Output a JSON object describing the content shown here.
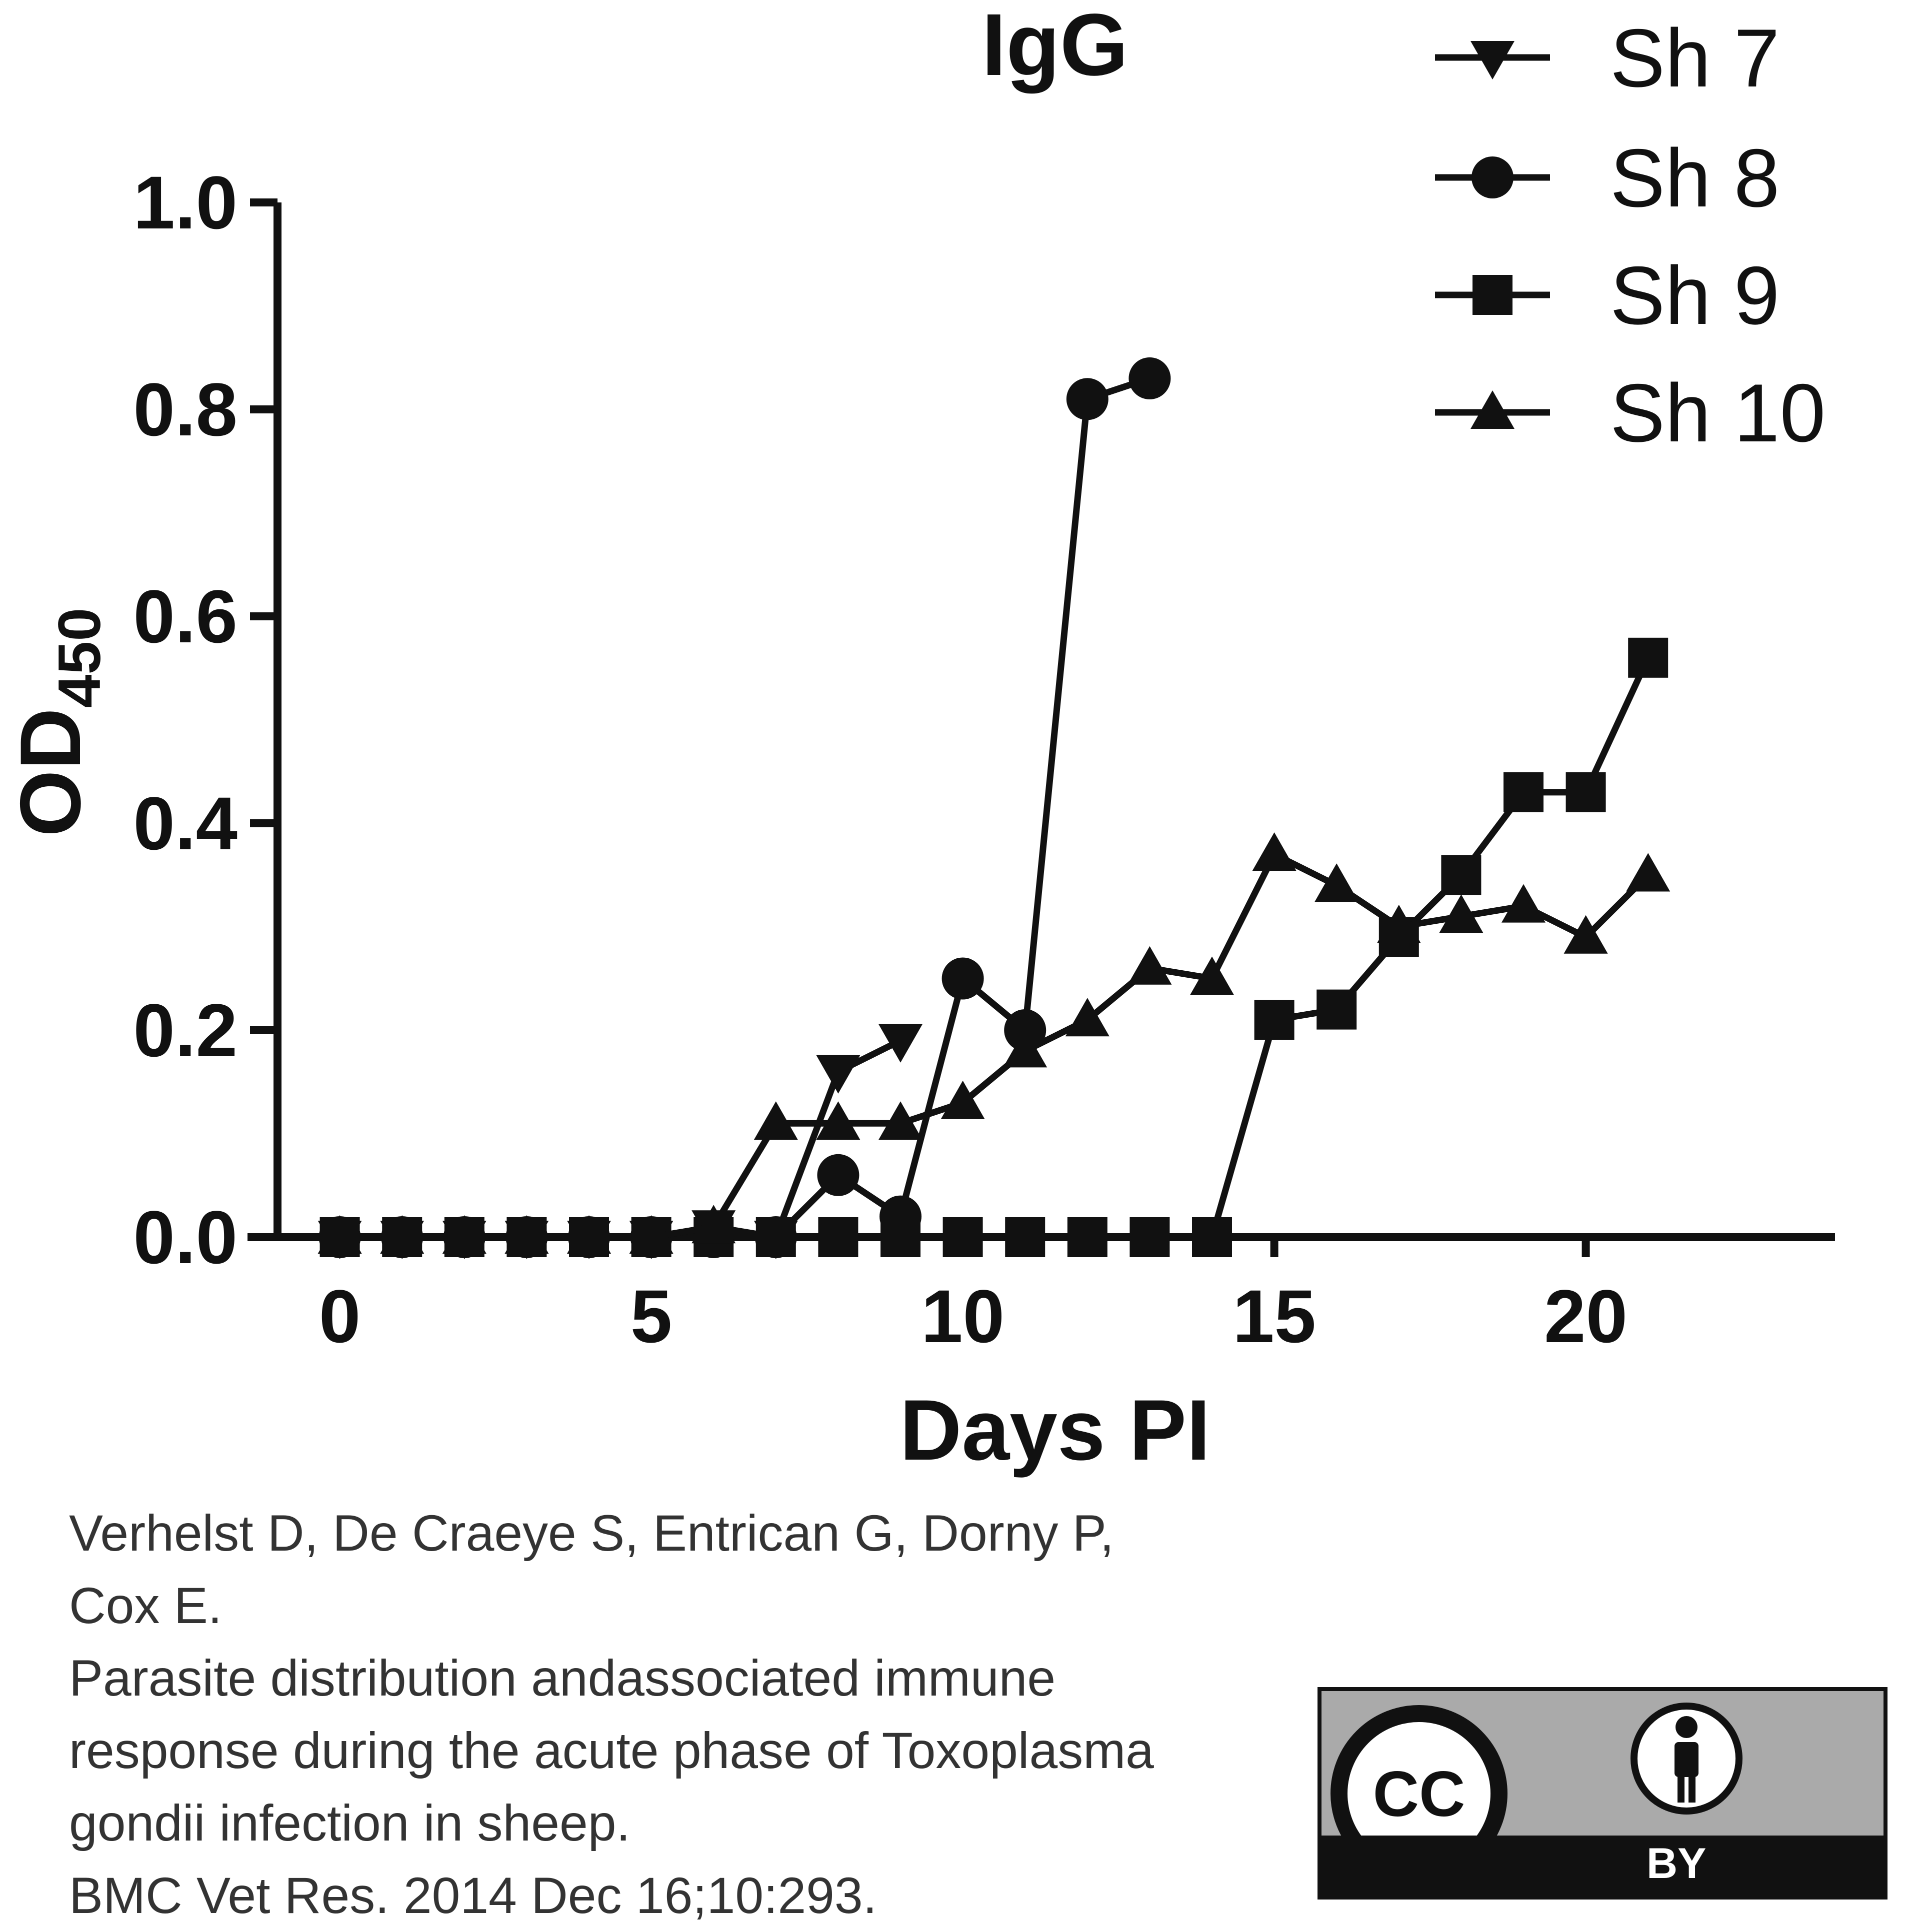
{
  "chart_data": {
    "type": "line",
    "title": "IgG",
    "xlabel": "Days PI",
    "ylabel_main": "OD",
    "ylabel_sub": "450",
    "xlim": [
      -1,
      24
    ],
    "ylim": [
      0,
      1.0
    ],
    "xticks": [
      0,
      5,
      10,
      15,
      20
    ],
    "xtick_labels": [
      "0",
      "5",
      "10",
      "15",
      "20"
    ],
    "yticks": [
      0.0,
      0.2,
      0.4,
      0.6,
      0.8,
      1.0
    ],
    "ytick_labels": [
      "0.0",
      "0.2",
      "0.4",
      "0.6",
      "0.8",
      "1.0"
    ],
    "legend_position": "top-right",
    "series": [
      {
        "name": "Sh 7",
        "marker": "triangle-down",
        "x": [
          0,
          1,
          2,
          3,
          4,
          5,
          6,
          7,
          8,
          9
        ],
        "y": [
          0,
          0,
          0,
          0,
          0,
          0,
          0.01,
          0.0,
          0.16,
          0.19
        ]
      },
      {
        "name": "Sh 8",
        "marker": "circle",
        "x": [
          0,
          1,
          2,
          3,
          4,
          5,
          6,
          7,
          8,
          9,
          10,
          11,
          12,
          13
        ],
        "y": [
          0,
          0,
          0,
          0,
          0,
          0,
          0,
          0,
          0.06,
          0.02,
          0.25,
          0.2,
          0.81,
          0.83
        ]
      },
      {
        "name": "Sh 9",
        "marker": "square",
        "x": [
          0,
          1,
          2,
          3,
          4,
          5,
          6,
          7,
          8,
          9,
          10,
          11,
          12,
          13,
          14,
          15,
          16,
          17,
          18,
          19,
          20,
          21
        ],
        "y": [
          0,
          0,
          0,
          0,
          0,
          0,
          0,
          0,
          0,
          0,
          0,
          0,
          0,
          0,
          0,
          0.21,
          0.22,
          0.29,
          0.35,
          0.43,
          0.43,
          0.56
        ]
      },
      {
        "name": "Sh 10",
        "marker": "triangle-up",
        "x": [
          0,
          1,
          2,
          3,
          4,
          5,
          6,
          7,
          8,
          9,
          10,
          11,
          12,
          13,
          14,
          15,
          16,
          17,
          18,
          19,
          20,
          21
        ],
        "y": [
          0,
          0,
          0,
          0,
          0,
          0,
          0.01,
          0.11,
          0.11,
          0.11,
          0.13,
          0.18,
          0.21,
          0.26,
          0.25,
          0.37,
          0.34,
          0.3,
          0.31,
          0.32,
          0.29,
          0.35
        ]
      }
    ]
  },
  "citation": {
    "lines": [
      "Verhelst D, De Craeye S, Entrican G, Dorny P,",
      "Cox E.",
      "Parasite distribution andassociated immune",
      "response during the acute phase of Toxoplasma",
      "gondii infection in sheep.",
      "BMC Vet Res. 2014 Dec 16;10:293."
    ]
  },
  "license_badge": {
    "cc_text": "CC",
    "by_text": "BY"
  }
}
